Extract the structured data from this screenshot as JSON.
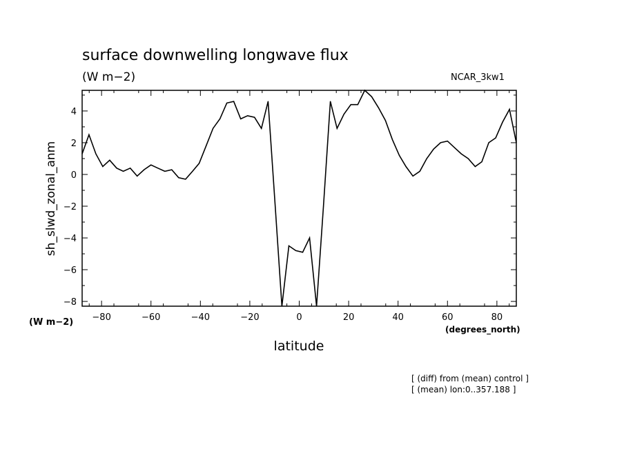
{
  "header": {
    "title": "surface downwelling longwave flux",
    "units": "(W m−2)",
    "model": "NCAR_3kw1"
  },
  "footer": {
    "note_line1": "[ (diff) from (mean) control ]",
    "note_line2": "[ (mean) lon:0..357.188 ]"
  },
  "chart_data": {
    "type": "line",
    "title": "surface downwelling longwave flux",
    "subtitle": "(W m−2)",
    "xlabel": "latitude",
    "xunit": "(degrees_north)",
    "ylabel": "sh_slwd_zonal_anm",
    "yunit": "(W m−2)",
    "xlim": [
      -87.86,
      87.86
    ],
    "ylim": [
      -8.3,
      5.3
    ],
    "x_ticks": [
      -80,
      -60,
      -40,
      -20,
      0,
      20,
      40,
      60,
      80
    ],
    "x_tick_labels": [
      "−80",
      "−60",
      "−40",
      "−20",
      "0",
      "20",
      "40",
      "60",
      "80"
    ],
    "y_ticks": [
      -8,
      -6,
      -4,
      -2,
      0,
      2,
      4
    ],
    "y_tick_labels": [
      "−8",
      "−6",
      "−4",
      "−2",
      "0",
      "2",
      "4"
    ],
    "grid": false,
    "series": [
      {
        "x": [
          -87.86,
          -85.1,
          -82.3,
          -79.5,
          -76.7,
          -73.9,
          -71.2,
          -68.4,
          -65.6,
          -62.8,
          -60.0,
          -57.2,
          -54.4,
          -51.6,
          -48.8,
          -46.0,
          -43.2,
          -40.5,
          -37.7,
          -34.9,
          -32.1,
          -29.3,
          -26.5,
          -23.7,
          -20.9,
          -18.1,
          -15.3,
          -12.6,
          -9.8,
          -7.0,
          -4.2,
          -1.4,
          1.4,
          4.2,
          7.0,
          9.8,
          12.6,
          15.3,
          18.1,
          20.9,
          23.7,
          26.5,
          29.3,
          32.1,
          34.9,
          37.7,
          40.5,
          43.2,
          46.0,
          48.8,
          51.6,
          54.4,
          57.2,
          60.0,
          62.8,
          65.6,
          68.4,
          71.2,
          73.9,
          76.7,
          79.5,
          82.3,
          85.1,
          87.86
        ],
        "y": [
          1.3,
          2.5,
          1.3,
          0.5,
          0.9,
          0.4,
          0.2,
          0.4,
          -0.1,
          0.3,
          0.6,
          0.4,
          0.2,
          0.3,
          -0.2,
          -0.3,
          0.2,
          0.7,
          1.8,
          2.9,
          3.5,
          4.5,
          4.6,
          3.5,
          3.7,
          3.6,
          2.9,
          4.6,
          -1.8,
          -8.3,
          -4.5,
          -4.8,
          -4.9,
          -4.0,
          -8.3,
          -2.0,
          4.6,
          2.9,
          3.8,
          4.4,
          4.4,
          5.3,
          4.9,
          4.2,
          3.4,
          2.2,
          1.2,
          0.5,
          -0.1,
          0.2,
          1.0,
          1.6,
          2.0,
          2.1,
          1.7,
          1.3,
          1.0,
          0.5,
          0.8,
          2.0,
          2.3,
          3.3,
          4.1,
          2.0
        ]
      }
    ]
  }
}
